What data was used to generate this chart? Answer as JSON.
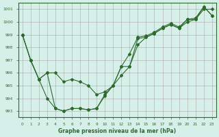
{
  "title": "Graphe pression niveau de la mer (hPa)",
  "background_color": "#d6efe8",
  "grid_color": "#aaaaaa",
  "line_color": "#2d6a2d",
  "x_ticks": [
    0,
    1,
    2,
    3,
    4,
    5,
    6,
    7,
    8,
    9,
    10,
    11,
    12,
    13,
    14,
    15,
    16,
    17,
    18,
    19,
    20,
    21,
    22,
    23
  ],
  "y_ticks": [
    993,
    994,
    995,
    996,
    997,
    998,
    999,
    1000,
    1001
  ],
  "ylim": [
    992.5,
    1001.5
  ],
  "xlim": [
    -0.5,
    23.5
  ],
  "series1": [
    999,
    997,
    995.5,
    996,
    996,
    995.3,
    995.5,
    995.3,
    995.0,
    994.3,
    994.5,
    995.0,
    996.5,
    997.5,
    998.8,
    998.9,
    999.2,
    999.6,
    999.9,
    999.6,
    1000.2,
    1000.2,
    1001.2,
    1000.5
  ],
  "series2": [
    999,
    997,
    995.5,
    996,
    993.2,
    993.0,
    993.2,
    993.2,
    993.1,
    993.2,
    994.2,
    995.0,
    995.8,
    996.5,
    998.7,
    998.8,
    999.1,
    999.5,
    999.8,
    999.5,
    1000.0,
    1000.2,
    1001.0,
    1001.0
  ],
  "series3": [
    999,
    997,
    995.5,
    994.0,
    993.2,
    993.0,
    993.2,
    993.2,
    993.1,
    993.2,
    994.3,
    995.0,
    996.5,
    996.5,
    998.2,
    998.8,
    999.1,
    999.5,
    999.8,
    999.5,
    1000.2,
    1000.3,
    1001.2,
    1000.5
  ]
}
